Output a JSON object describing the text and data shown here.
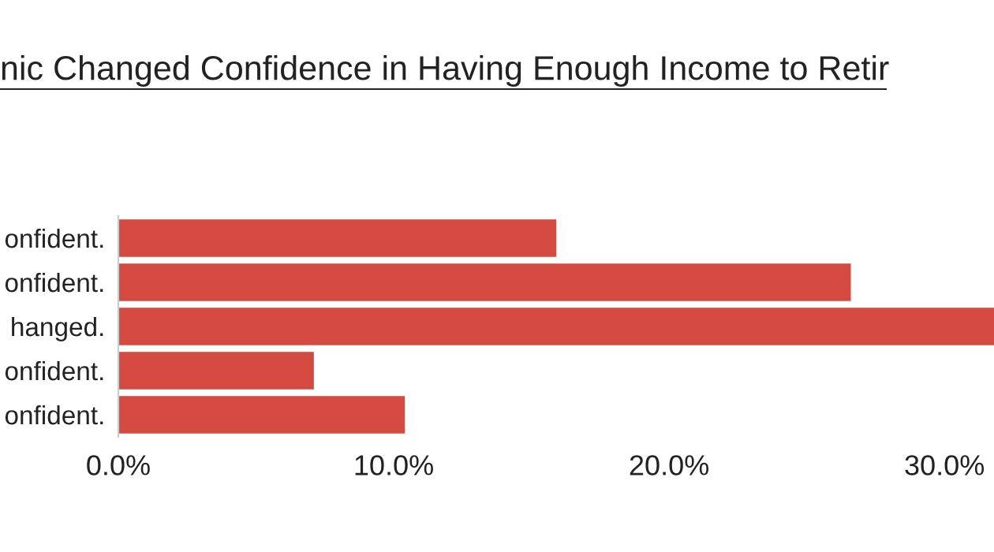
{
  "chart_data": {
    "type": "bar",
    "orientation": "horizontal",
    "title": "nic Changed Confidence in Having Enough Income to Retir",
    "categories": [
      "onfident.",
      "onfident.",
      "hanged.",
      "onfident.",
      "onfident."
    ],
    "values": [
      15.9,
      26.6,
      31.8,
      7.1,
      10.4
    ],
    "color": "#d44a40",
    "xlim": [
      0,
      31.8
    ],
    "xticks": [
      {
        "value": 0,
        "label": "0.0%"
      },
      {
        "value": 10,
        "label": "10.0%"
      },
      {
        "value": 20,
        "label": "20.0%"
      },
      {
        "value": 30,
        "label": "30.0%"
      }
    ],
    "grid": false,
    "legend": false
  }
}
